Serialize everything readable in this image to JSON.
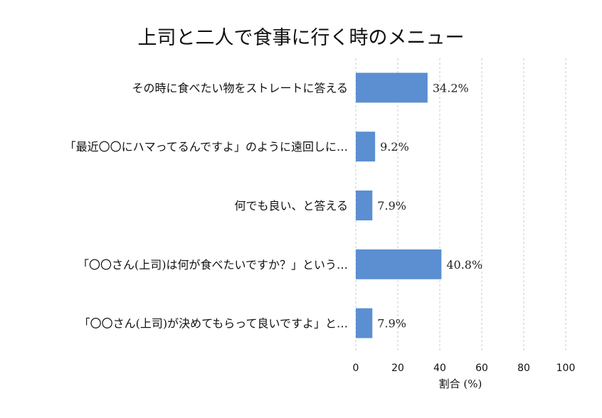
{
  "chart_data": {
    "type": "bar",
    "orientation": "horizontal",
    "title": "上司と二人で食事に行く時のメニュー",
    "xlabel": "割合 (%)",
    "ylabel": "",
    "xlim": [
      0,
      100
    ],
    "xticks": [
      "0",
      "20",
      "40",
      "60",
      "80",
      "100"
    ],
    "grid": true,
    "bar_color": "#5b8fd1",
    "categories": [
      "その時に食べたい物をストレートに答える",
      "「最近〇〇にハマってるんですよ」のように遠回しに…",
      "何でも良い、と答える",
      "「〇〇さん(上司)は何が食べたいですか？」という…",
      "「〇〇さん(上司)が決めてもらって良いですよ」と…"
    ],
    "values": [
      34.2,
      9.2,
      7.9,
      40.8,
      7.9
    ],
    "value_labels": [
      "34.2%",
      "9.2%",
      "7.9%",
      "40.8%",
      "7.9%"
    ]
  }
}
